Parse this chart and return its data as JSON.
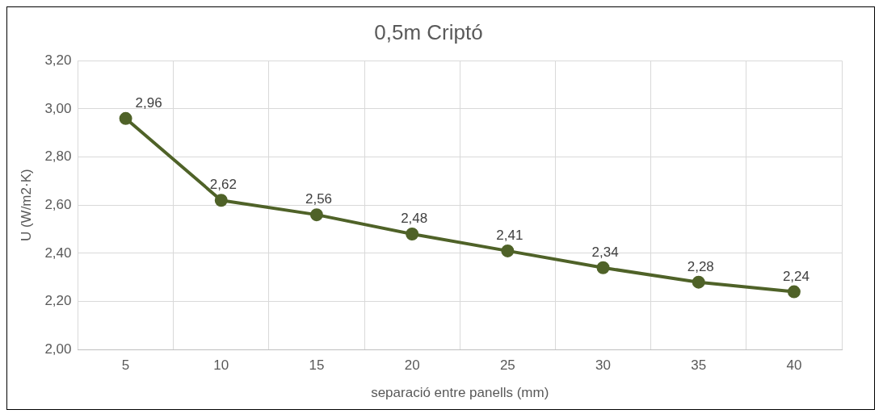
{
  "chart_data": {
    "type": "line",
    "title": "0,5m Criptó",
    "xlabel": "separació entre panells (mm)",
    "ylabel": "U (W/m2·K)",
    "categories": [
      "5",
      "10",
      "15",
      "20",
      "25",
      "30",
      "35",
      "40"
    ],
    "series": [
      {
        "color": "#4f6228",
        "values": [
          2.96,
          2.62,
          2.56,
          2.48,
          2.41,
          2.34,
          2.28,
          2.24
        ],
        "value_labels": [
          "2,96",
          "2,62",
          "2,56",
          "2,48",
          "2,41",
          "2,34",
          "2,28",
          "2,24"
        ]
      }
    ],
    "ylim": [
      2.0,
      3.2
    ],
    "yticks": [
      {
        "value": 2.0,
        "label": "2,00"
      },
      {
        "value": 2.2,
        "label": "2,20"
      },
      {
        "value": 2.4,
        "label": "2,40"
      },
      {
        "value": 2.6,
        "label": "2,60"
      },
      {
        "value": 2.8,
        "label": "2,80"
      },
      {
        "value": 3.0,
        "label": "3,00"
      },
      {
        "value": 3.2,
        "label": "3,20"
      }
    ],
    "grid": true,
    "legend": false,
    "marker": "circle",
    "line_style": "solid"
  }
}
